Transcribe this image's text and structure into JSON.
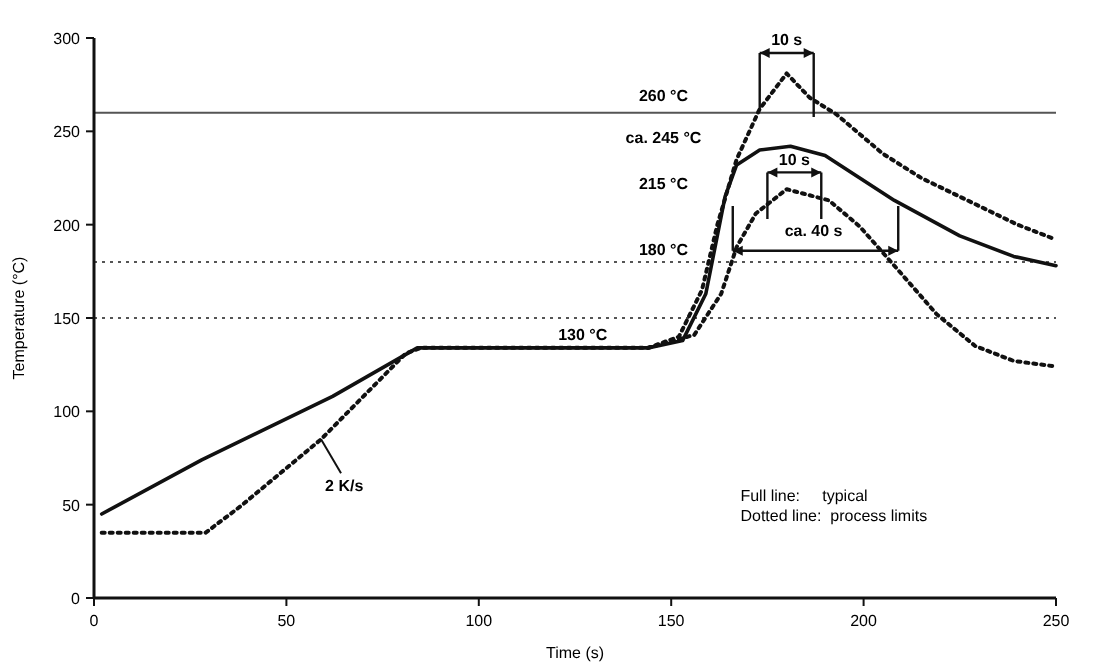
{
  "chart_data": {
    "type": "line",
    "xlabel": "Time (s)",
    "ylabel": "Temperature (°C)",
    "xlim": [
      0,
      250
    ],
    "ylim": [
      0,
      300
    ],
    "xticks": [
      0,
      50,
      100,
      150,
      200,
      250
    ],
    "yticks": [
      0,
      50,
      100,
      150,
      200,
      250,
      300
    ],
    "grid": false,
    "marker": "none",
    "series": [
      {
        "color": "#111111",
        "line_style": "solid",
        "x": [
          2,
          28,
          62,
          84,
          144,
          153,
          159,
          164,
          167,
          173,
          181,
          190,
          208,
          225,
          239,
          250
        ],
        "values": [
          45,
          74,
          108,
          134,
          134,
          138,
          163,
          215,
          232,
          240,
          242,
          237,
          213,
          194,
          183,
          178
        ]
      },
      {
        "color": "#111111",
        "line_style": "dotted",
        "x": [
          2,
          29,
          38,
          59,
          81,
          85,
          144,
          152,
          158,
          162,
          167,
          173,
          180,
          186,
          193,
          205,
          215,
          227,
          240,
          250
        ],
        "values": [
          35,
          35,
          49,
          85,
          131,
          134,
          134,
          140,
          165,
          200,
          235,
          262,
          281,
          268,
          259,
          238,
          225,
          213,
          200,
          192
        ]
      },
      {
        "color": "#111111",
        "line_style": "dotted",
        "x": [
          144,
          156,
          163,
          167,
          172,
          180,
          191,
          199,
          208,
          219,
          229,
          239,
          250
        ],
        "values": [
          134,
          141,
          163,
          188,
          206,
          219,
          213,
          199,
          178,
          152,
          135,
          127,
          124
        ]
      }
    ],
    "ref_lines": [
      {
        "axis": "y",
        "value": 260,
        "color": "#555555",
        "line_style": "solid"
      },
      {
        "axis": "y",
        "value": 180,
        "color": "#555555",
        "line_style": "dotted"
      },
      {
        "axis": "y",
        "value": 150,
        "color": "#555555",
        "line_style": "dotted"
      }
    ],
    "annotations": [
      "260 °C",
      "ca. 245 °C",
      "215 °C",
      "180 °C",
      {
        "text": "130 °C",
        "x": 127,
        "y": 134
      },
      {
        "text": "10 s",
        "x": 173,
        "y": 262
      },
      "10 s",
      "ca. 40 s",
      {
        "text": "2 K/s",
        "x": 59,
        "y": 85
      },
      "Full line:     typical",
      "Dotted line:  process limits"
    ]
  }
}
